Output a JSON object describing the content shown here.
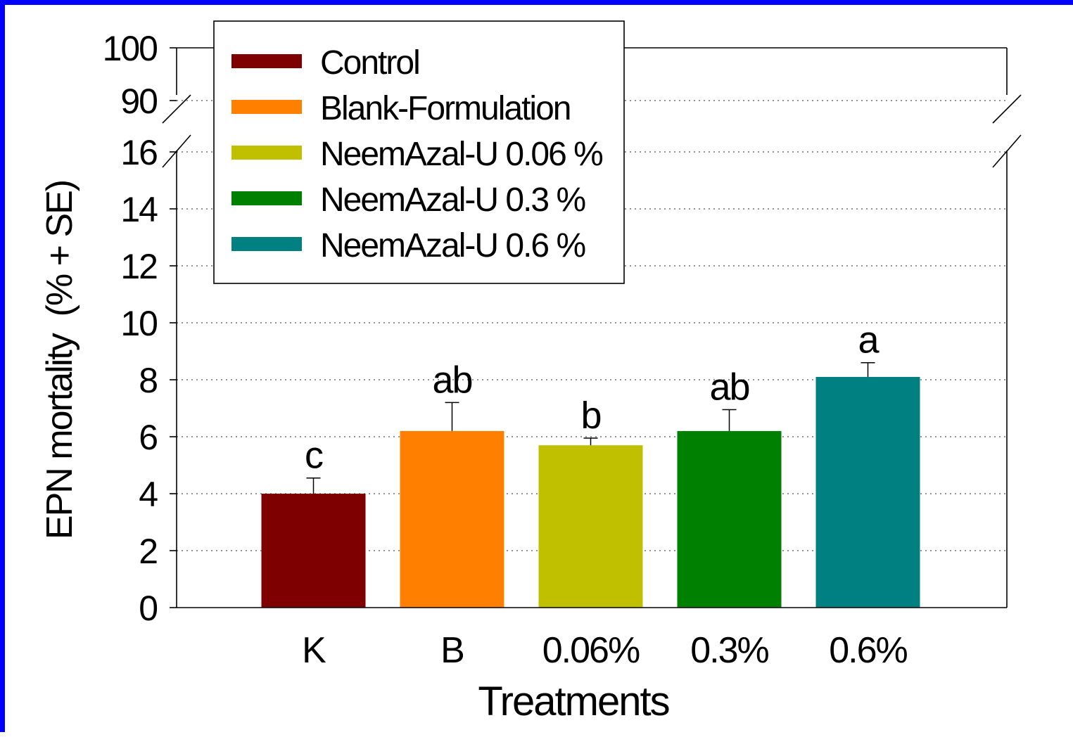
{
  "chart_data": {
    "type": "bar",
    "title": "",
    "xlabel": "Treatments",
    "ylabel": "EPN mortality  (% + SE)",
    "categories": [
      "K",
      "B",
      "0.06%",
      "0.3%",
      "0.6%"
    ],
    "series": [
      {
        "name": "Control",
        "color": "#7f0000",
        "category": "K",
        "value": 4.0,
        "se": 0.55,
        "letter": "c"
      },
      {
        "name": "Blank-Formulation",
        "color": "#ff8000",
        "category": "B",
        "value": 6.2,
        "se": 1.0,
        "letter": "ab"
      },
      {
        "name": "NeemAzal-U 0.06 %",
        "color": "#c0c000",
        "category": "0.06%",
        "value": 5.7,
        "se": 0.25,
        "letter": "b"
      },
      {
        "name": "NeemAzal-U 0.3 %",
        "color": "#008000",
        "category": "0.3%",
        "value": 6.2,
        "se": 0.75,
        "letter": "ab"
      },
      {
        "name": "NeemAzal-U 0.6 %",
        "color": "#008080",
        "category": "0.6%",
        "value": 8.1,
        "se": 0.5,
        "letter": "a"
      }
    ],
    "y_axis": {
      "broken": true,
      "lower_range": [
        0,
        16
      ],
      "upper_range": [
        90,
        100
      ],
      "ticks_lower": [
        0,
        2,
        4,
        6,
        8,
        10,
        12,
        14,
        16
      ],
      "ticks_upper": [
        90,
        100
      ]
    },
    "grid": "horizontal dotted",
    "legend_position": "top-left"
  }
}
